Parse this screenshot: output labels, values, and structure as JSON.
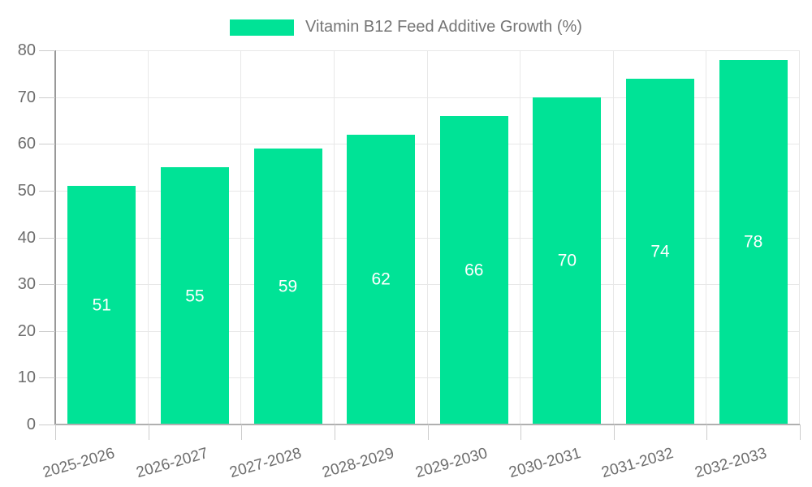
{
  "chart_data": {
    "type": "bar",
    "series_name": "Vitamin B12 Feed Additive Growth (%)",
    "categories": [
      "2025-2026",
      "2026-2027",
      "2027-2028",
      "2028-2029",
      "2029-2030",
      "2030-2031",
      "2031-2032",
      "2032-2033"
    ],
    "values": [
      51,
      55,
      59,
      62,
      66,
      70,
      74,
      78
    ],
    "ylim": [
      0,
      80
    ],
    "yticks": [
      0,
      10,
      20,
      30,
      40,
      50,
      60,
      70,
      80
    ],
    "grid": "horizontal-and-vertical",
    "legend_position": "top-center",
    "value_labels": "centered-inside-bars",
    "colors": {
      "bar": "#00E396",
      "value_label": "#ffffff",
      "axis_text": "#6d6d6d",
      "legend_text": "#757575",
      "gridline": "#e8e8e8",
      "y_axis_line": "#999999",
      "x_axis_line": "#b0b0b0",
      "tick": "#cccccc"
    },
    "xlabel": "",
    "ylabel": ""
  }
}
